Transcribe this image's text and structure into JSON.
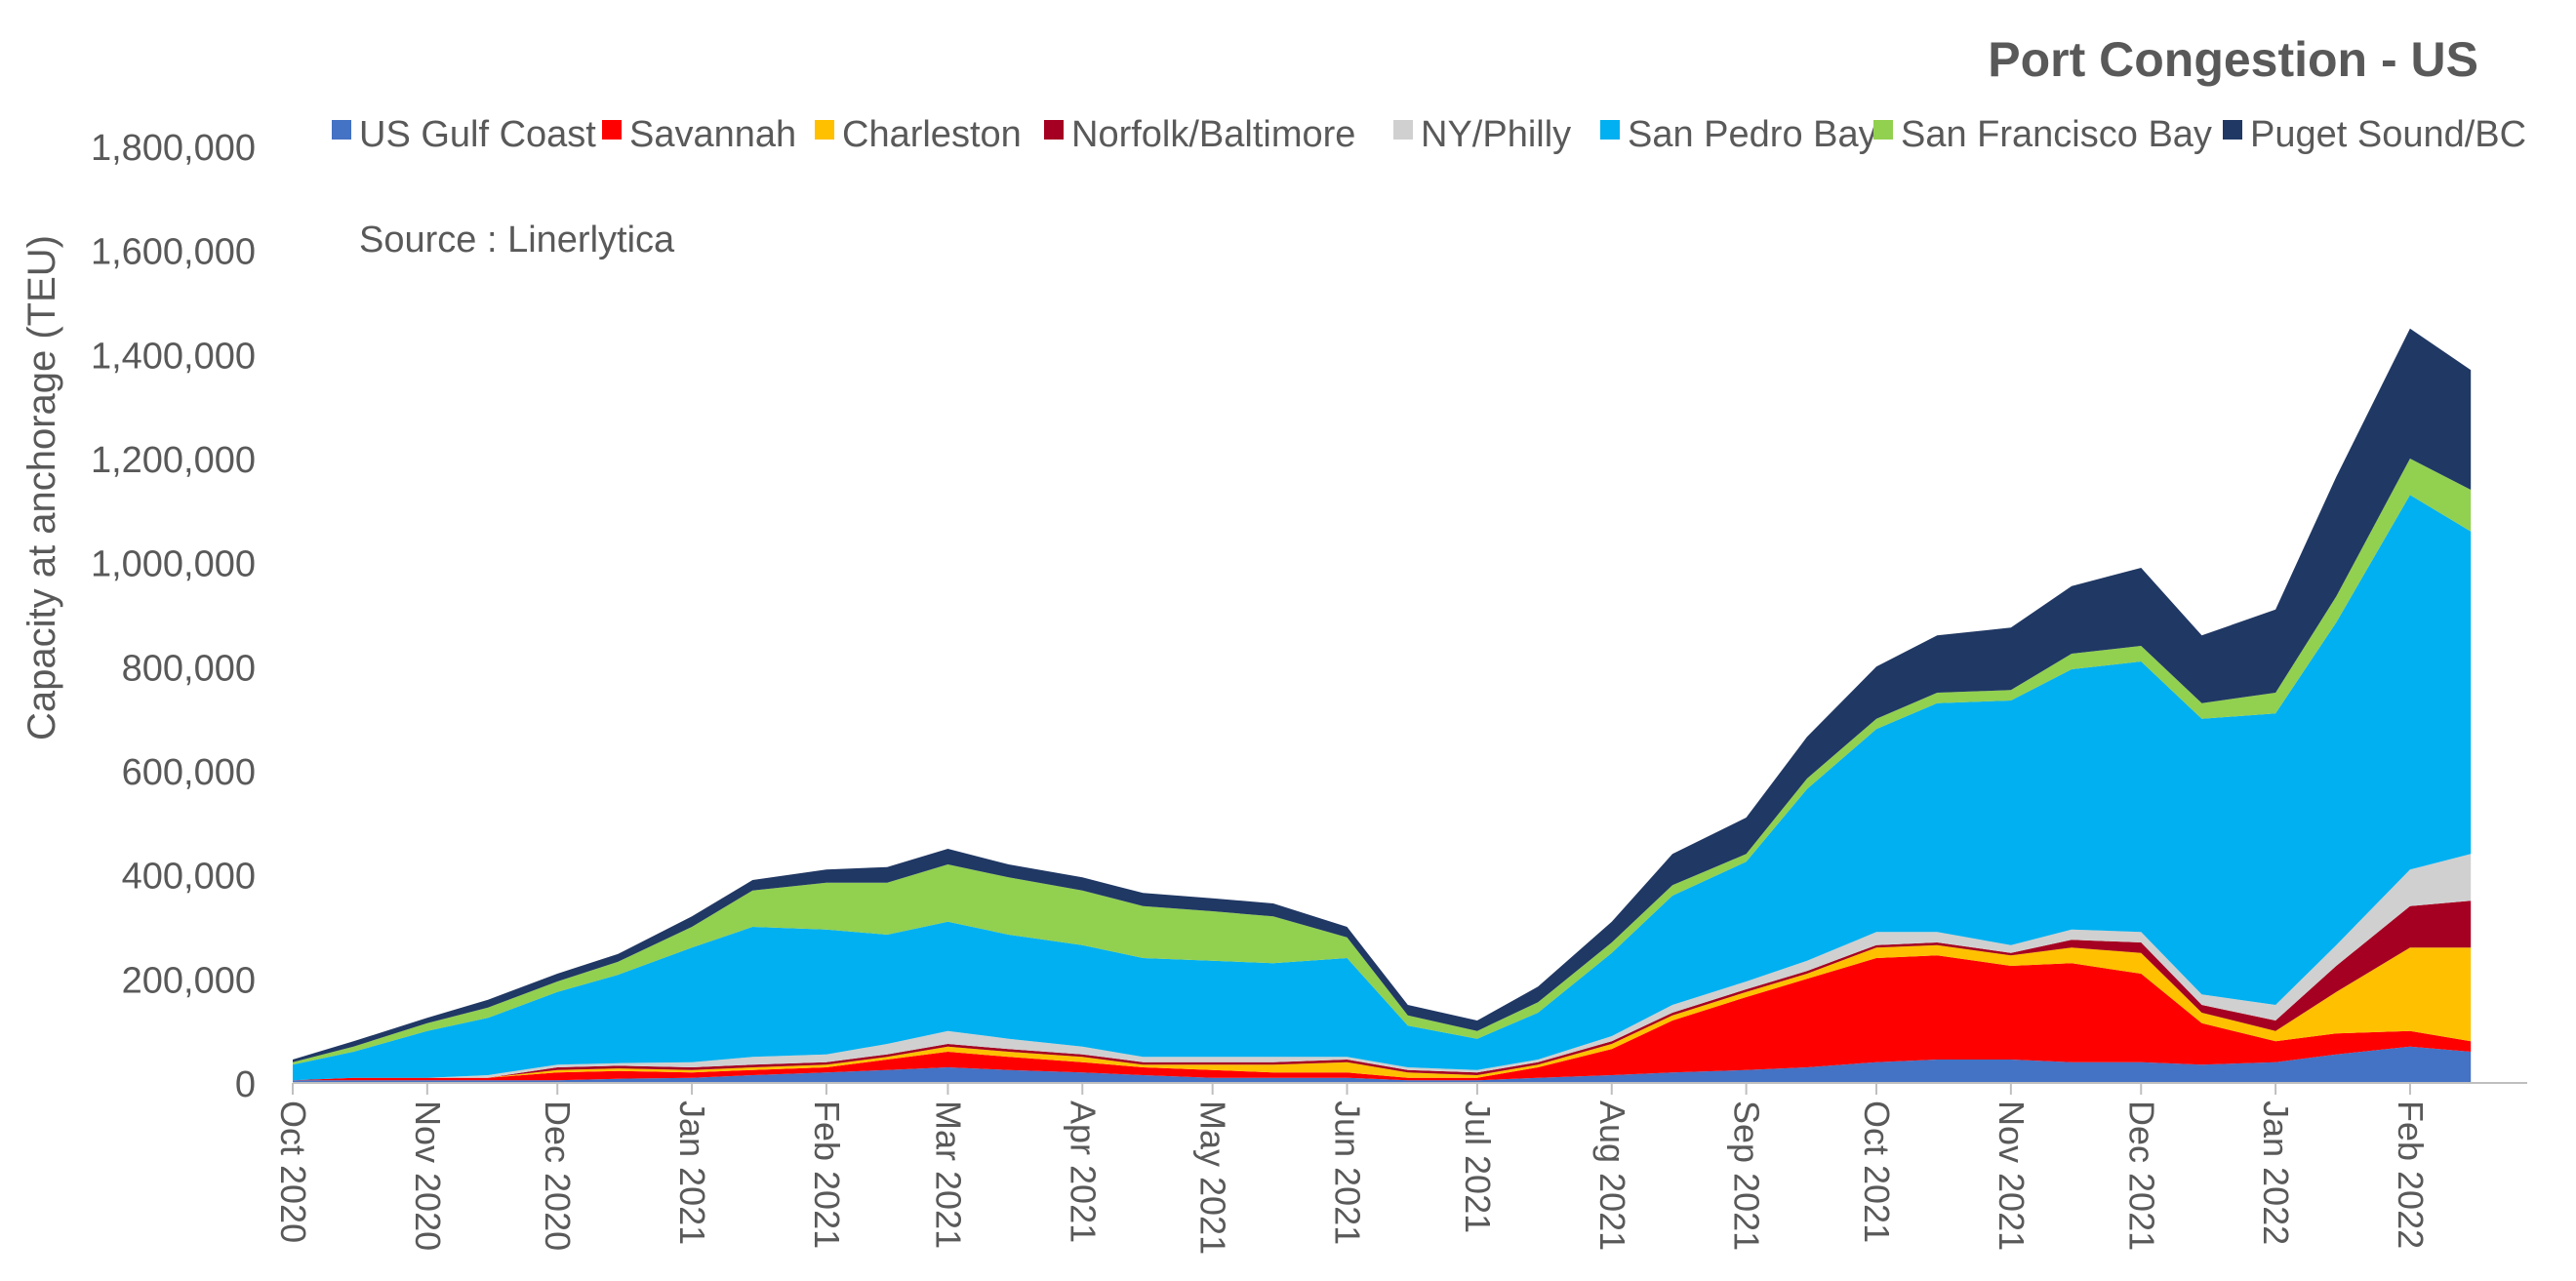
{
  "chart_data": {
    "type": "area",
    "stacked": true,
    "title": "Port Congestion - US",
    "annotation": "Source : Linerlytica",
    "xlabel": "",
    "ylabel": "Capacity at anchorage (TEU)",
    "ylim": [
      0,
      1800000
    ],
    "yticks": [
      "1,800,000",
      "1,600,000",
      "1,400,000",
      "1,200,000",
      "1,000,000",
      "800,000",
      "600,000",
      "400,000",
      "200,000",
      "0"
    ],
    "xticks": [
      "Oct 2020",
      "Nov 2020",
      "Dec 2020",
      "Jan 2021",
      "Feb 2021",
      "Mar 2021",
      "Apr 2021",
      "May 2021",
      "Jun 2021",
      "Jul 2021",
      "Aug 2021",
      "Sep 2021",
      "Oct 2021",
      "Nov 2021",
      "Dec 2021",
      "Jan 2022",
      "Feb 2022"
    ],
    "x": [
      "2020-10-01",
      "2020-10-15",
      "2020-11-01",
      "2020-11-15",
      "2020-12-01",
      "2020-12-15",
      "2021-01-01",
      "2021-01-15",
      "2021-02-01",
      "2021-02-15",
      "2021-03-01",
      "2021-03-15",
      "2021-04-01",
      "2021-04-15",
      "2021-05-01",
      "2021-05-15",
      "2021-06-01",
      "2021-06-15",
      "2021-07-01",
      "2021-07-15",
      "2021-08-01",
      "2021-08-15",
      "2021-09-01",
      "2021-09-15",
      "2021-10-01",
      "2021-10-15",
      "2021-11-01",
      "2021-11-15",
      "2021-12-01",
      "2021-12-15",
      "2022-01-01",
      "2022-01-15",
      "2022-02-01",
      "2022-02-15"
    ],
    "series": [
      {
        "name": "US Gulf Coast",
        "color": "#4472C4",
        "values": [
          5000,
          5000,
          5000,
          5000,
          5000,
          8000,
          10000,
          15000,
          20000,
          25000,
          30000,
          25000,
          20000,
          15000,
          10000,
          10000,
          10000,
          5000,
          5000,
          10000,
          15000,
          20000,
          25000,
          30000,
          40000,
          45000,
          45000,
          40000,
          40000,
          35000,
          40000,
          55000,
          70000,
          60000
        ]
      },
      {
        "name": "Savannah",
        "color": "#FF0000",
        "values": [
          0,
          5000,
          5000,
          5000,
          15000,
          15000,
          10000,
          10000,
          10000,
          20000,
          30000,
          25000,
          20000,
          15000,
          15000,
          10000,
          10000,
          5000,
          5000,
          20000,
          50000,
          100000,
          140000,
          170000,
          200000,
          200000,
          180000,
          190000,
          170000,
          80000,
          40000,
          40000,
          30000,
          20000
        ]
      },
      {
        "name": "Charleston",
        "color": "#FFC000",
        "values": [
          0,
          0,
          0,
          0,
          5000,
          5000,
          5000,
          5000,
          5000,
          5000,
          10000,
          10000,
          10000,
          5000,
          10000,
          15000,
          20000,
          10000,
          5000,
          5000,
          10000,
          10000,
          10000,
          10000,
          20000,
          20000,
          20000,
          30000,
          40000,
          20000,
          20000,
          80000,
          160000,
          180000
        ]
      },
      {
        "name": "Norfolk/Baltimore",
        "color": "#A50021",
        "values": [
          0,
          0,
          0,
          0,
          5000,
          5000,
          5000,
          5000,
          5000,
          5000,
          5000,
          5000,
          5000,
          5000,
          5000,
          5000,
          5000,
          5000,
          5000,
          5000,
          5000,
          5000,
          5000,
          5000,
          5000,
          5000,
          5000,
          15000,
          20000,
          15000,
          20000,
          50000,
          80000,
          90000
        ]
      },
      {
        "name": "NY/Philly",
        "color": "#D0D0D0",
        "values": [
          0,
          0,
          0,
          5000,
          5000,
          5000,
          10000,
          15000,
          15000,
          20000,
          25000,
          20000,
          15000,
          10000,
          10000,
          10000,
          5000,
          5000,
          5000,
          5000,
          10000,
          15000,
          15000,
          20000,
          25000,
          20000,
          15000,
          20000,
          20000,
          20000,
          30000,
          40000,
          70000,
          90000
        ]
      },
      {
        "name": "San Pedro Bay",
        "color": "#00B0F0",
        "values": [
          30000,
          50000,
          90000,
          110000,
          140000,
          170000,
          220000,
          250000,
          240000,
          210000,
          210000,
          200000,
          195000,
          190000,
          185000,
          180000,
          190000,
          80000,
          60000,
          90000,
          160000,
          210000,
          230000,
          330000,
          390000,
          440000,
          470000,
          500000,
          520000,
          530000,
          560000,
          620000,
          720000,
          620000
        ]
      },
      {
        "name": "San Francisco Bay",
        "color": "#92D050",
        "values": [
          5000,
          10000,
          15000,
          20000,
          20000,
          25000,
          40000,
          70000,
          90000,
          100000,
          110000,
          110000,
          105000,
          100000,
          95000,
          90000,
          40000,
          20000,
          15000,
          20000,
          20000,
          20000,
          15000,
          20000,
          20000,
          20000,
          20000,
          30000,
          30000,
          30000,
          40000,
          50000,
          70000,
          80000
        ]
      },
      {
        "name": "Puget Sound/BC",
        "color": "#203864",
        "values": [
          5000,
          10000,
          10000,
          15000,
          15000,
          15000,
          20000,
          20000,
          25000,
          30000,
          30000,
          25000,
          25000,
          25000,
          25000,
          25000,
          20000,
          20000,
          20000,
          30000,
          40000,
          60000,
          70000,
          80000,
          100000,
          110000,
          120000,
          130000,
          150000,
          130000,
          160000,
          230000,
          250000,
          230000
        ]
      }
    ]
  }
}
